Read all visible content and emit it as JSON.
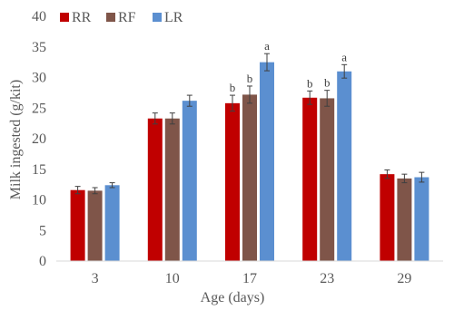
{
  "chart_data": {
    "type": "bar",
    "xlabel": "Age (days)",
    "ylabel": "Milk ingested (g/kit)",
    "categories": [
      "3",
      "10",
      "17",
      "23",
      "29"
    ],
    "ylim": [
      0,
      40
    ],
    "yticks": [
      0,
      5,
      10,
      15,
      20,
      25,
      30,
      35,
      40
    ],
    "legend_position": "top-left",
    "grid": false,
    "series": [
      {
        "name": "RR",
        "color": "#C00000",
        "values": [
          11.6,
          23.3,
          25.8,
          26.7,
          14.2
        ],
        "errors": [
          0.6,
          0.9,
          1.3,
          1.1,
          0.7
        ],
        "labels": [
          "",
          "",
          "b",
          "b",
          ""
        ]
      },
      {
        "name": "RF",
        "color": "#7F5549",
        "values": [
          11.5,
          23.3,
          27.2,
          26.6,
          13.5
        ],
        "errors": [
          0.5,
          0.9,
          1.4,
          1.3,
          0.7
        ],
        "labels": [
          "",
          "",
          "b",
          "b",
          ""
        ]
      },
      {
        "name": "LR",
        "color": "#5B8FD0",
        "values": [
          12.4,
          26.2,
          32.5,
          31.0,
          13.7
        ],
        "errors": [
          0.4,
          0.9,
          1.4,
          1.1,
          0.8
        ],
        "labels": [
          "",
          "",
          "a",
          "a",
          ""
        ]
      }
    ]
  }
}
